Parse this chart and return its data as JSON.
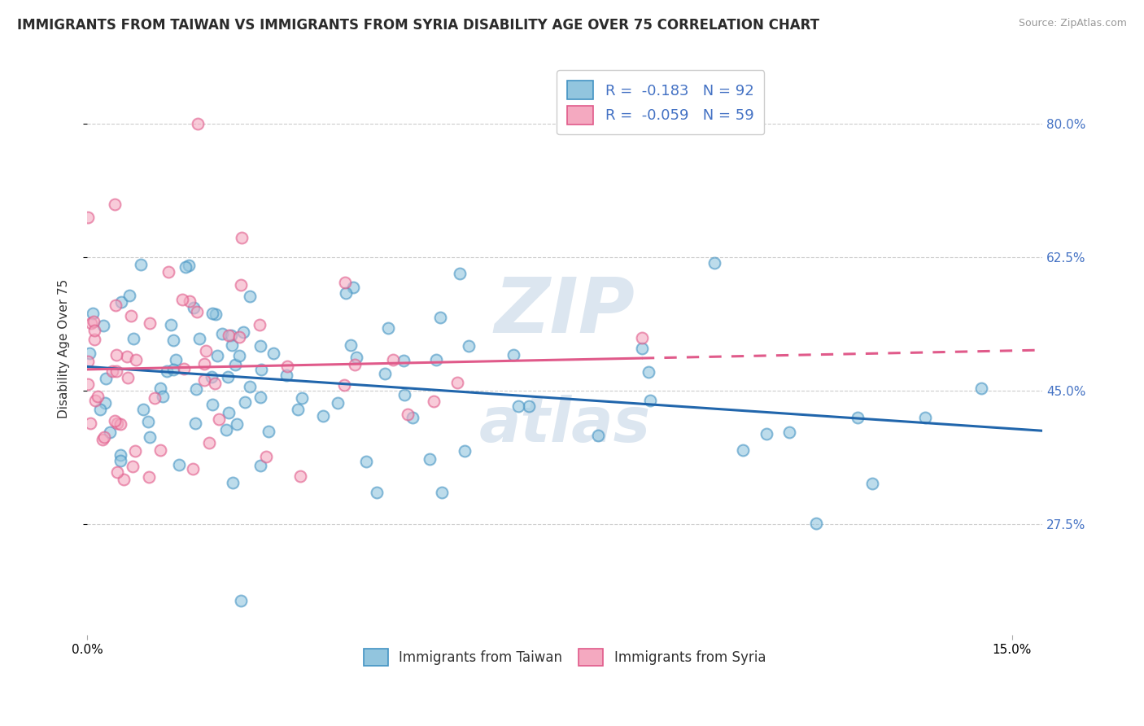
{
  "title": "IMMIGRANTS FROM TAIWAN VS IMMIGRANTS FROM SYRIA DISABILITY AGE OVER 75 CORRELATION CHART",
  "source_text": "Source: ZipAtlas.com",
  "ylabel": "Disability Age Over 75",
  "xlim": [
    0.0,
    0.155
  ],
  "ylim": [
    0.13,
    0.88
  ],
  "ytick_values": [
    0.275,
    0.45,
    0.625,
    0.8
  ],
  "ytick_labels_right": [
    "27.5%",
    "45.0%",
    "62.5%",
    "80.0%"
  ],
  "taiwan_color": "#92c5de",
  "taiwan_edge_color": "#4393c3",
  "syria_color": "#f4a9c0",
  "syria_edge_color": "#e05a8a",
  "taiwan_line_color": "#2166ac",
  "syria_line_color": "#e05a8a",
  "taiwan_R": -0.183,
  "taiwan_N": 92,
  "syria_R": -0.059,
  "syria_N": 59,
  "legend_label_taiwan": "Immigrants from Taiwan",
  "legend_label_syria": "Immigrants from Syria",
  "title_fontsize": 12,
  "axis_label_fontsize": 11,
  "tick_fontsize": 11,
  "grid_color": "#cccccc",
  "background_color": "#ffffff",
  "watermark_color": "#dce6f0",
  "right_tick_color": "#4472c4",
  "marker_size": 100,
  "marker_alpha": 0.6,
  "marker_linewidth": 1.5
}
